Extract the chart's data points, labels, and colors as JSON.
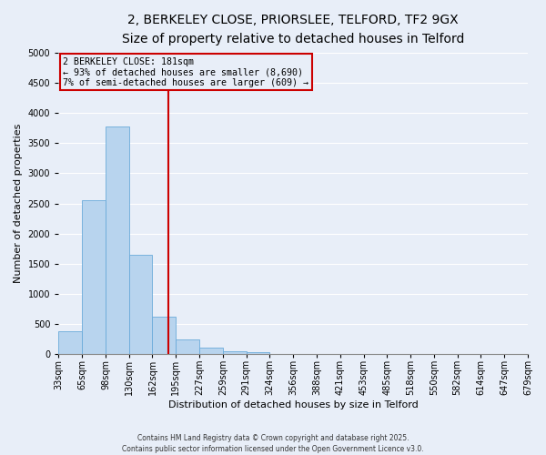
{
  "title_line1": "2, BERKELEY CLOSE, PRIORSLEE, TELFORD, TF2 9GX",
  "title_line2": "Size of property relative to detached houses in Telford",
  "xlabel": "Distribution of detached houses by size in Telford",
  "ylabel": "Number of detached properties",
  "bar_values": [
    390,
    2550,
    3780,
    1650,
    620,
    250,
    110,
    50,
    30,
    0,
    0,
    0,
    0,
    0,
    0,
    0,
    0,
    0,
    0,
    0
  ],
  "bin_labels": [
    "33sqm",
    "65sqm",
    "98sqm",
    "130sqm",
    "162sqm",
    "195sqm",
    "227sqm",
    "259sqm",
    "291sqm",
    "324sqm",
    "356sqm",
    "388sqm",
    "421sqm",
    "453sqm",
    "485sqm",
    "518sqm",
    "550sqm",
    "582sqm",
    "614sqm",
    "647sqm",
    "679sqm"
  ],
  "bar_color": "#b8d4ee",
  "bar_edge_color": "#6aabda",
  "vline_x": 4.67,
  "vline_color": "#cc0000",
  "annotation_box_text": "2 BERKELEY CLOSE: 181sqm\n← 93% of detached houses are smaller (8,690)\n7% of semi-detached houses are larger (609) →",
  "annotation_box_color": "#cc0000",
  "ylim": [
    0,
    5000
  ],
  "yticks": [
    0,
    500,
    1000,
    1500,
    2000,
    2500,
    3000,
    3500,
    4000,
    4500,
    5000
  ],
  "footer_line1": "Contains HM Land Registry data © Crown copyright and database right 2025.",
  "footer_line2": "Contains public sector information licensed under the Open Government Licence v3.0.",
  "bg_color": "#e8eef8",
  "grid_color": "#ffffff",
  "title_fontsize": 10,
  "subtitle_fontsize": 9,
  "xlabel_fontsize": 8,
  "ylabel_fontsize": 8,
  "tick_fontsize": 7,
  "footer_fontsize": 5.5
}
